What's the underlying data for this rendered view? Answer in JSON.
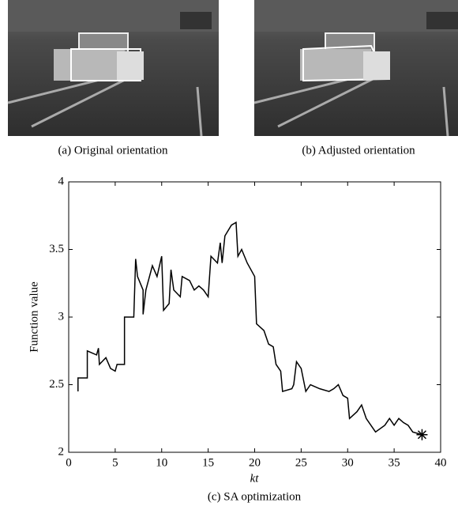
{
  "figures": [
    {
      "caption": "(a) Original orientation"
    },
    {
      "caption": "(b) Adjusted orientation"
    }
  ],
  "chart_data": {
    "type": "line",
    "caption": "(c) SA optimization",
    "xlabel": "kt",
    "ylabel": "Function value",
    "xlim": [
      0,
      40
    ],
    "ylim": [
      2,
      4
    ],
    "xticks": [
      0,
      5,
      10,
      15,
      20,
      25,
      30,
      35,
      40
    ],
    "yticks": [
      2,
      2.5,
      3,
      3.5,
      4
    ],
    "grid": false,
    "series": [
      {
        "color": "#000000",
        "x": [
          1,
          1,
          2,
          2,
          3,
          3.2,
          3.3,
          4,
          4.5,
          5,
          5.2,
          6,
          6,
          7,
          7.2,
          7.4,
          8,
          8,
          8.3,
          9,
          9.5,
          10,
          10.2,
          10.8,
          11,
          11.3,
          12,
          12.2,
          13,
          13.5,
          14,
          14.5,
          15,
          15.3,
          16,
          16.3,
          16.5,
          16.8,
          17.5,
          18,
          18.2,
          18.6,
          19.2,
          20,
          20.2,
          21,
          21.5,
          22,
          22.3,
          22.8,
          23,
          24,
          24.2,
          24.5,
          25,
          25.5,
          26,
          27,
          28,
          28.5,
          29,
          29.5,
          30,
          30.2,
          31,
          31.5,
          32,
          32.5,
          33,
          34,
          34.5,
          35,
          35.5,
          36,
          36.5,
          37,
          38
        ],
        "values": [
          2.45,
          2.55,
          2.55,
          2.75,
          2.72,
          2.77,
          2.65,
          2.7,
          2.62,
          2.6,
          2.65,
          2.65,
          3.0,
          3.0,
          3.43,
          3.3,
          3.2,
          3.02,
          3.2,
          3.38,
          3.3,
          3.45,
          3.05,
          3.1,
          3.35,
          3.2,
          3.15,
          3.3,
          3.27,
          3.2,
          3.23,
          3.2,
          3.15,
          3.45,
          3.4,
          3.55,
          3.4,
          3.6,
          3.68,
          3.7,
          3.45,
          3.5,
          3.4,
          3.3,
          2.95,
          2.9,
          2.8,
          2.78,
          2.65,
          2.6,
          2.45,
          2.47,
          2.5,
          2.67,
          2.62,
          2.45,
          2.5,
          2.47,
          2.45,
          2.47,
          2.5,
          2.42,
          2.4,
          2.25,
          2.3,
          2.35,
          2.25,
          2.2,
          2.15,
          2.2,
          2.25,
          2.2,
          2.25,
          2.22,
          2.2,
          2.15,
          2.13
        ]
      }
    ],
    "markers": {
      "x": [
        38
      ],
      "values": [
        2.13
      ],
      "color": "#000000"
    }
  }
}
